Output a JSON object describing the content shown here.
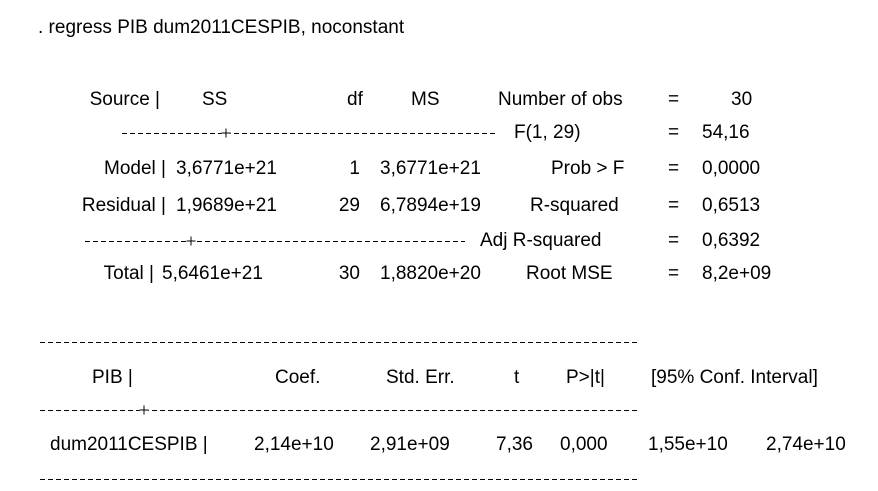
{
  "command": ". regress PIB dum2011CESPIB, noconstant",
  "anova": {
    "header": [
      "Source |",
      "SS",
      "df",
      "MS"
    ],
    "rows": [
      {
        "source": "Model |",
        "ss": "3,6771e+21",
        "df": "1",
        "ms": "3,6771e+21"
      },
      {
        "source": "Residual |",
        "ss": "1,9689e+21",
        "df": "29",
        "ms": "6,7894e+19"
      },
      {
        "source": "Total |",
        "ss": "5,6461e+21",
        "df": "30",
        "ms": "1,8820e+20"
      }
    ]
  },
  "fit_stats": [
    {
      "label": "Number of obs",
      "eq": "=",
      "value": "30"
    },
    {
      "label": "F(1, 29)",
      "eq": "=",
      "value": "54,16"
    },
    {
      "label": "Prob > F",
      "eq": "=",
      "value": "0,0000"
    },
    {
      "label": "R-squared",
      "eq": "=",
      "value": "0,6513"
    },
    {
      "label": "Adj R-squared",
      "eq": "=",
      "value": "0,6392"
    },
    {
      "label": "Root MSE",
      "eq": "=",
      "value": "8,2e+09"
    }
  ],
  "coef_table": {
    "header": [
      "PIB |",
      "Coef.",
      "Std. Err.",
      "t",
      "P>|t|",
      "[95% Conf. Interval]"
    ],
    "rows": [
      [
        "dum2011CESPIB |",
        "2,14e+10",
        "2,91e+09",
        "7,36",
        "0,000",
        "1,55e+10",
        "2,74e+10"
      ]
    ]
  }
}
